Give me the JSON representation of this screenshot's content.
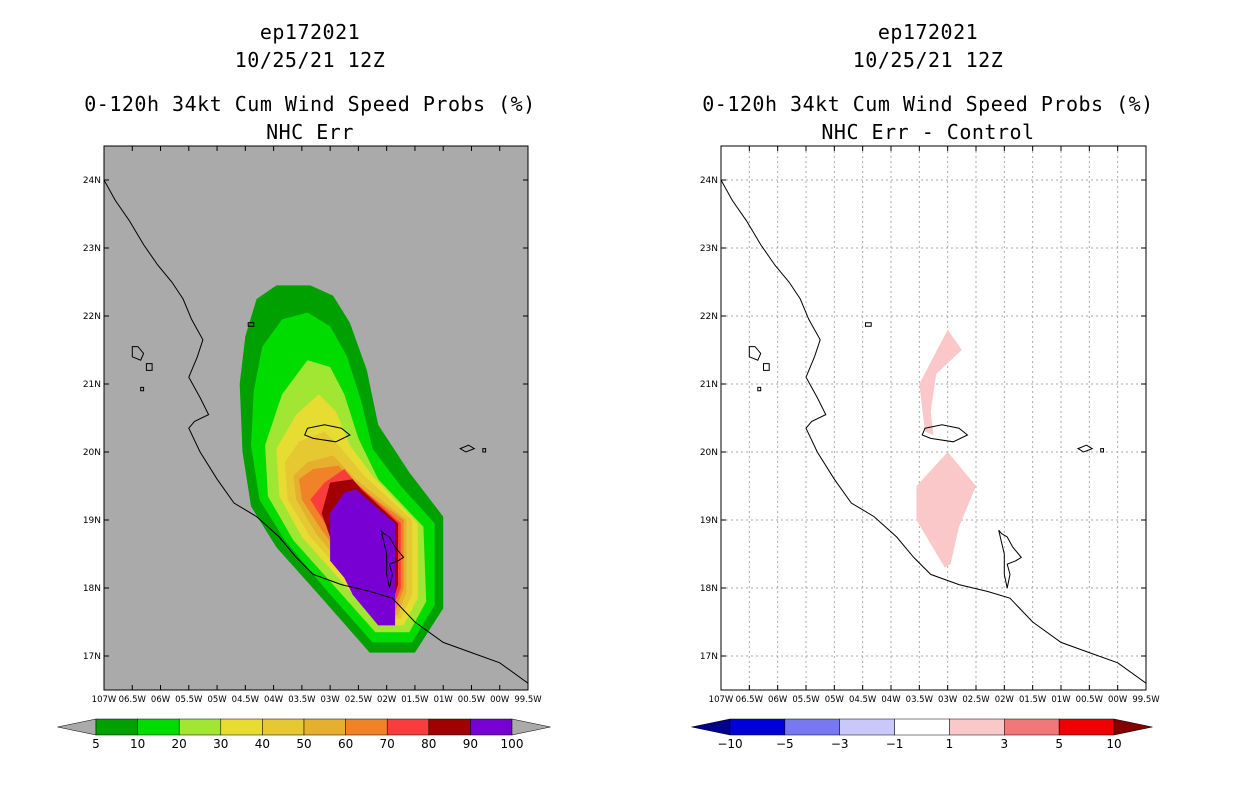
{
  "left_panel": {
    "title_line1": "ep172021",
    "title_line2": "10/25/21 12Z",
    "title_line3": "0-120h 34kt Cum Wind Speed Probs (%)",
    "title_line4": "NHC Err",
    "background_color": "#aaaaaa"
  },
  "right_panel": {
    "title_line1": "ep172021",
    "title_line2": "10/25/21 12Z",
    "title_line3": "0-120h 34kt Cum Wind Speed Probs (%)",
    "title_line4": "NHC Err - Control",
    "background_color": "#ffffff"
  },
  "chart_data": [
    {
      "type": "heatmap",
      "title": "0-120h 34kt Cum Wind Speed Probs (%) NHC Err",
      "xlim": [
        -107,
        -99.5
      ],
      "ylim": [
        16.5,
        24.5
      ],
      "x_ticks": [
        -107,
        -106.5,
        -106,
        -105.5,
        -105,
        -104.5,
        -104,
        -103.5,
        -103,
        -102.5,
        -102,
        -101.5,
        -101,
        -100.5,
        -100,
        -99.5
      ],
      "x_tick_labels": [
        "107W",
        "06.5W",
        "06W",
        "05.5W",
        "05W",
        "04.5W",
        "04W",
        "03.5W",
        "03W",
        "02.5W",
        "02W",
        "01.5W",
        "01W",
        "00.5W",
        "00W",
        "99.5W"
      ],
      "y_ticks": [
        17,
        18,
        19,
        20,
        21,
        22,
        23,
        24
      ],
      "y_tick_labels": [
        "17N",
        "18N",
        "19N",
        "20N",
        "21N",
        "22N",
        "23N",
        "24N"
      ],
      "grid": false,
      "contours": [
        {
          "level": 5,
          "color": "#00a000",
          "polygon": [
            [
              -104.3,
              22.25
            ],
            [
              -103.95,
              22.45
            ],
            [
              -103.35,
              22.45
            ],
            [
              -102.95,
              22.3
            ],
            [
              -102.65,
              21.9
            ],
            [
              -102.35,
              21.2
            ],
            [
              -102.15,
              20.4
            ],
            [
              -101.6,
              19.7
            ],
            [
              -101.0,
              19.05
            ],
            [
              -101.0,
              17.7
            ],
            [
              -101.5,
              17.05
            ],
            [
              -102.3,
              17.05
            ],
            [
              -103.2,
              17.9
            ],
            [
              -103.95,
              18.6
            ],
            [
              -104.4,
              19.2
            ],
            [
              -104.55,
              20.0
            ],
            [
              -104.6,
              21.0
            ],
            [
              -104.5,
              21.7
            ]
          ]
        },
        {
          "level": 10,
          "color": "#00dc00",
          "polygon": [
            [
              -104.2,
              21.55
            ],
            [
              -103.85,
              21.95
            ],
            [
              -103.4,
              22.05
            ],
            [
              -103.0,
              21.85
            ],
            [
              -102.7,
              21.4
            ],
            [
              -102.45,
              20.75
            ],
            [
              -102.25,
              20.05
            ],
            [
              -101.75,
              19.5
            ],
            [
              -101.15,
              18.95
            ],
            [
              -101.15,
              17.75
            ],
            [
              -101.55,
              17.2
            ],
            [
              -102.25,
              17.2
            ],
            [
              -103.1,
              18.0
            ],
            [
              -103.8,
              18.7
            ],
            [
              -104.25,
              19.3
            ],
            [
              -104.4,
              20.1
            ],
            [
              -104.35,
              20.9
            ]
          ]
        },
        {
          "level": 20,
          "color": "#a0e632",
          "polygon": [
            [
              -103.85,
              20.85
            ],
            [
              -103.4,
              21.35
            ],
            [
              -103.0,
              21.25
            ],
            [
              -102.75,
              20.85
            ],
            [
              -102.5,
              20.2
            ],
            [
              -102.15,
              19.6
            ],
            [
              -101.35,
              18.9
            ],
            [
              -101.3,
              17.8
            ],
            [
              -101.6,
              17.35
            ],
            [
              -102.2,
              17.35
            ],
            [
              -102.95,
              18.05
            ],
            [
              -103.65,
              18.7
            ],
            [
              -104.1,
              19.35
            ],
            [
              -104.15,
              20.1
            ]
          ]
        },
        {
          "level": 30,
          "color": "#e6dc32",
          "polygon": [
            [
              -103.6,
              20.55
            ],
            [
              -103.2,
              20.85
            ],
            [
              -102.9,
              20.6
            ],
            [
              -102.65,
              20.1
            ],
            [
              -102.25,
              19.65
            ],
            [
              -101.45,
              18.95
            ],
            [
              -101.45,
              17.85
            ],
            [
              -101.7,
              17.45
            ],
            [
              -102.15,
              17.45
            ],
            [
              -102.8,
              18.1
            ],
            [
              -103.5,
              18.75
            ],
            [
              -103.9,
              19.35
            ],
            [
              -103.95,
              20.05
            ]
          ]
        },
        {
          "level": 40,
          "color": "#e6c832",
          "polygon": [
            [
              -103.55,
              20.15
            ],
            [
              -103.1,
              20.3
            ],
            [
              -102.8,
              20.05
            ],
            [
              -102.4,
              19.65
            ],
            [
              -101.55,
              19.0
            ],
            [
              -101.55,
              17.9
            ],
            [
              -101.75,
              17.55
            ],
            [
              -102.15,
              17.55
            ],
            [
              -102.7,
              18.15
            ],
            [
              -103.35,
              18.75
            ],
            [
              -103.75,
              19.3
            ],
            [
              -103.8,
              19.85
            ]
          ]
        },
        {
          "level": 50,
          "color": "#e6af2d",
          "polygon": [
            [
              -103.4,
              19.85
            ],
            [
              -102.95,
              19.95
            ],
            [
              -102.55,
              19.6
            ],
            [
              -101.65,
              19.0
            ],
            [
              -101.65,
              17.95
            ],
            [
              -101.8,
              17.6
            ],
            [
              -102.15,
              17.6
            ],
            [
              -102.65,
              18.2
            ],
            [
              -103.25,
              18.8
            ],
            [
              -103.6,
              19.3
            ],
            [
              -103.65,
              19.65
            ]
          ]
        },
        {
          "level": 60,
          "color": "#f08228",
          "polygon": [
            [
              -103.3,
              19.75
            ],
            [
              -102.85,
              19.8
            ],
            [
              -102.6,
              19.55
            ],
            [
              -101.7,
              19.0
            ],
            [
              -101.7,
              18.0
            ],
            [
              -101.85,
              17.65
            ],
            [
              -102.15,
              17.65
            ],
            [
              -102.6,
              18.25
            ],
            [
              -103.15,
              18.85
            ],
            [
              -103.5,
              19.3
            ],
            [
              -103.55,
              19.6
            ]
          ]
        },
        {
          "level": 70,
          "color": "#fa3c3c",
          "polygon": [
            [
              -103.1,
              19.55
            ],
            [
              -102.75,
              19.75
            ],
            [
              -102.55,
              19.55
            ],
            [
              -101.75,
              18.95
            ],
            [
              -101.75,
              18.0
            ],
            [
              -101.9,
              17.7
            ],
            [
              -102.15,
              17.7
            ],
            [
              -102.55,
              18.3
            ],
            [
              -103.05,
              18.9
            ],
            [
              -103.35,
              19.3
            ]
          ]
        },
        {
          "level": 80,
          "color": "#a00000",
          "polygon": [
            [
              -103.0,
              19.55
            ],
            [
              -102.6,
              19.6
            ],
            [
              -102.45,
              19.45
            ],
            [
              -101.8,
              18.95
            ],
            [
              -101.8,
              18.05
            ],
            [
              -101.95,
              17.65
            ],
            [
              -102.15,
              17.65
            ],
            [
              -102.55,
              18.25
            ],
            [
              -103.0,
              18.75
            ],
            [
              -103.15,
              19.1
            ]
          ]
        },
        {
          "level": 90,
          "color": "#7800d2",
          "polygon": [
            [
              -103.0,
              19.1
            ],
            [
              -102.75,
              19.4
            ],
            [
              -102.55,
              19.45
            ],
            [
              -101.85,
              18.95
            ],
            [
              -101.85,
              17.45
            ],
            [
              -102.15,
              17.45
            ],
            [
              -102.6,
              17.9
            ],
            [
              -102.75,
              18.15
            ],
            [
              -103.0,
              18.4
            ]
          ]
        }
      ],
      "colorbar": {
        "boundaries": [
          5,
          10,
          20,
          30,
          40,
          50,
          60,
          70,
          80,
          90,
          100
        ],
        "colors": [
          "#00a000",
          "#00dc00",
          "#a0e632",
          "#e6dc32",
          "#e6c832",
          "#e6af2d",
          "#f08228",
          "#fa3c3c",
          "#a00000",
          "#7800d2"
        ],
        "low_color": "#aaaaaa",
        "high_color": "#aaaaaa"
      }
    },
    {
      "type": "heatmap",
      "title": "0-120h 34kt Cum Wind Speed Probs (%) NHC Err - Control",
      "xlim": [
        -107,
        -99.5
      ],
      "ylim": [
        16.5,
        24.5
      ],
      "x_ticks": [
        -107,
        -106.5,
        -106,
        -105.5,
        -105,
        -104.5,
        -104,
        -103.5,
        -103,
        -102.5,
        -102,
        -101.5,
        -101,
        -100.5,
        -100,
        -99.5
      ],
      "x_tick_labels": [
        "107W",
        "06.5W",
        "06W",
        "05.5W",
        "05W",
        "04.5W",
        "04W",
        "03.5W",
        "03W",
        "02.5W",
        "02W",
        "01.5W",
        "01W",
        "00.5W",
        "00W",
        "99.5W"
      ],
      "y_ticks": [
        17,
        18,
        19,
        20,
        21,
        22,
        23,
        24
      ],
      "y_tick_labels": [
        "17N",
        "18N",
        "19N",
        "20N",
        "21N",
        "22N",
        "23N",
        "24N"
      ],
      "grid": true,
      "contours": [
        {
          "level": 1,
          "color": "#fac8c8",
          "polygon": [
            [
              -103.5,
              21.0
            ],
            [
              -103.0,
              21.8
            ],
            [
              -102.75,
              21.5
            ],
            [
              -103.2,
              21.15
            ],
            [
              -103.3,
              20.6
            ],
            [
              -103.25,
              20.25
            ],
            [
              -103.4,
              20.3
            ]
          ]
        },
        {
          "level": 1,
          "color": "#fac8c8",
          "polygon": [
            [
              -103.55,
              19.5
            ],
            [
              -103.0,
              20.0
            ],
            [
              -102.5,
              19.5
            ],
            [
              -102.8,
              18.9
            ],
            [
              -102.95,
              18.35
            ],
            [
              -103.05,
              18.3
            ],
            [
              -103.55,
              19.0
            ]
          ]
        }
      ],
      "colorbar": {
        "boundaries": [
          -10,
          -5,
          -3,
          -1,
          1,
          3,
          5,
          10
        ],
        "colors": [
          "#0000dc",
          "#7878f0",
          "#c8c8fa",
          "#ffffff",
          "#fac8c8",
          "#f07878",
          "#f00000"
        ],
        "low_color": "#00008c",
        "high_color": "#820000"
      }
    }
  ],
  "coastline": [
    [
      -107,
      24.0
    ],
    [
      -106.8,
      23.7
    ],
    [
      -106.55,
      23.4
    ],
    [
      -106.3,
      23.05
    ],
    [
      -106.05,
      22.75
    ],
    [
      -105.8,
      22.5
    ],
    [
      -105.6,
      22.25
    ],
    [
      -105.45,
      21.95
    ],
    [
      -105.25,
      21.65
    ],
    [
      -105.35,
      21.4
    ],
    [
      -105.5,
      21.1
    ],
    [
      -105.3,
      20.8
    ],
    [
      -105.15,
      20.55
    ],
    [
      -105.4,
      20.45
    ],
    [
      -105.5,
      20.35
    ],
    [
      -105.3,
      20.0
    ],
    [
      -105.0,
      19.6
    ],
    [
      -104.7,
      19.25
    ],
    [
      -104.3,
      19.05
    ],
    [
      -103.9,
      18.75
    ],
    [
      -103.6,
      18.45
    ],
    [
      -103.3,
      18.2
    ],
    [
      -102.8,
      18.05
    ],
    [
      -102.3,
      17.95
    ],
    [
      -101.9,
      17.85
    ],
    [
      -101.5,
      17.5
    ],
    [
      -101.0,
      17.2
    ],
    [
      -100.5,
      17.05
    ],
    [
      -100.0,
      16.9
    ],
    [
      -99.5,
      16.6
    ]
  ],
  "islands": [
    [
      [
        -103.4,
        20.35
      ],
      [
        -103.1,
        20.4
      ],
      [
        -102.8,
        20.35
      ],
      [
        -102.65,
        20.25
      ],
      [
        -102.9,
        20.15
      ],
      [
        -103.3,
        20.2
      ],
      [
        -103.45,
        20.25
      ]
    ],
    [
      [
        -106.5,
        21.55
      ],
      [
        -106.4,
        21.55
      ],
      [
        -106.3,
        21.45
      ],
      [
        -106.35,
        21.35
      ],
      [
        -106.5,
        21.4
      ]
    ],
    [
      [
        -106.25,
        21.3
      ],
      [
        -106.15,
        21.3
      ],
      [
        -106.15,
        21.2
      ],
      [
        -106.25,
        21.2
      ]
    ],
    [
      [
        -106.35,
        20.95
      ],
      [
        -106.3,
        20.95
      ],
      [
        -106.3,
        20.9
      ],
      [
        -106.35,
        20.9
      ]
    ],
    [
      [
        -100.7,
        20.05
      ],
      [
        -100.55,
        20.1
      ],
      [
        -100.45,
        20.05
      ],
      [
        -100.6,
        20.0
      ]
    ],
    [
      [
        -100.3,
        20.05
      ],
      [
        -100.25,
        20.05
      ],
      [
        -100.25,
        20.0
      ],
      [
        -100.3,
        20.0
      ]
    ],
    [
      [
        -101.95,
        18.75
      ],
      [
        -101.85,
        18.6
      ],
      [
        -101.75,
        18.5
      ],
      [
        -101.7,
        18.45
      ],
      [
        -101.8,
        18.4
      ],
      [
        -101.95,
        18.35
      ],
      [
        -101.9,
        18.2
      ],
      [
        -101.95,
        18.0
      ],
      [
        -102.0,
        18.2
      ],
      [
        -102.0,
        18.5
      ],
      [
        -102.1,
        18.85
      ],
      [
        -102.05,
        18.8
      ]
    ],
    [
      [
        -104.45,
        21.9
      ],
      [
        -104.35,
        21.9
      ],
      [
        -104.35,
        21.85
      ],
      [
        -104.45,
        21.85
      ]
    ]
  ]
}
